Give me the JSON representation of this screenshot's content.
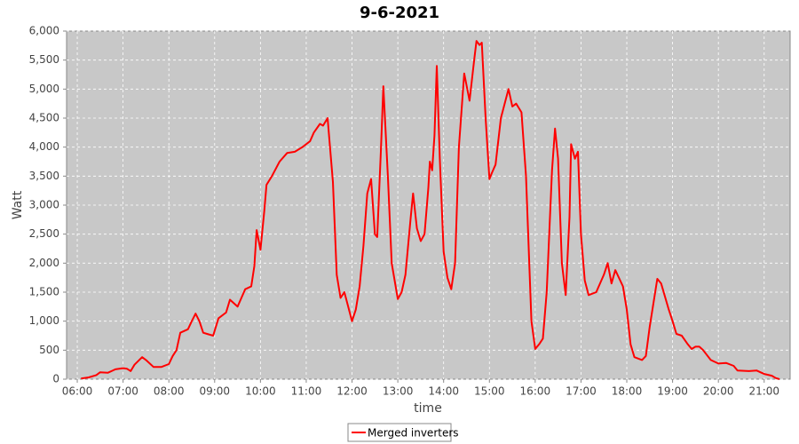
{
  "chart_data": {
    "type": "line",
    "title": "9-6-2021",
    "x_label": "time",
    "y_label": "Watt",
    "x": [
      "06:05",
      "06:15",
      "06:25",
      "06:30",
      "06:40",
      "06:50",
      "07:00",
      "07:05",
      "07:10",
      "07:15",
      "07:25",
      "07:30",
      "07:40",
      "07:50",
      "08:00",
      "08:05",
      "08:10",
      "08:15",
      "08:25",
      "08:30",
      "08:35",
      "08:40",
      "08:45",
      "08:50",
      "08:58",
      "09:05",
      "09:15",
      "09:20",
      "09:30",
      "09:35",
      "09:40",
      "09:48",
      "09:52",
      "09:55",
      "10:00",
      "10:05",
      "10:08",
      "10:15",
      "10:25",
      "10:35",
      "10:45",
      "10:55",
      "11:05",
      "11:10",
      "11:18",
      "11:22",
      "11:28",
      "11:35",
      "11:40",
      "11:45",
      "11:50",
      "11:55",
      "12:00",
      "12:05",
      "12:10",
      "12:15",
      "12:20",
      "12:25",
      "12:30",
      "12:33",
      "12:38",
      "12:41",
      "12:47",
      "12:52",
      "13:00",
      "13:05",
      "13:10",
      "13:17",
      "13:20",
      "13:25",
      "13:30",
      "13:35",
      "13:40",
      "13:42",
      "13:45",
      "13:48",
      "13:51",
      "13:55",
      "14:00",
      "14:05",
      "14:10",
      "14:15",
      "14:20",
      "14:27",
      "14:34",
      "14:40",
      "14:43",
      "14:47",
      "14:50",
      "14:55",
      "15:00",
      "15:03",
      "15:08",
      "15:15",
      "15:25",
      "15:30",
      "15:35",
      "15:42",
      "15:48",
      "15:55",
      "16:00",
      "16:05",
      "16:10",
      "16:15",
      "16:22",
      "16:26",
      "16:30",
      "16:35",
      "16:40",
      "16:45",
      "16:47",
      "16:52",
      "16:56",
      "17:00",
      "17:05",
      "17:10",
      "17:20",
      "17:30",
      "17:35",
      "17:40",
      "17:45",
      "17:55",
      "18:00",
      "18:05",
      "18:10",
      "18:20",
      "18:25",
      "18:30",
      "18:40",
      "18:45",
      "18:55",
      "19:00",
      "19:05",
      "19:12",
      "19:20",
      "19:25",
      "19:30",
      "19:35",
      "19:40",
      "19:50",
      "20:00",
      "20:10",
      "20:20",
      "20:25",
      "20:40",
      "20:50",
      "20:55",
      "21:00",
      "21:10",
      "21:15",
      "21:20"
    ],
    "series": [
      {
        "name": "Merged inverters",
        "color": "#ff0000",
        "values": [
          10,
          30,
          70,
          120,
          110,
          170,
          190,
          180,
          140,
          250,
          380,
          330,
          210,
          210,
          260,
          400,
          500,
          800,
          860,
          1000,
          1130,
          1000,
          800,
          780,
          750,
          1050,
          1150,
          1370,
          1250,
          1400,
          1550,
          1600,
          1950,
          2570,
          2230,
          2900,
          3350,
          3500,
          3750,
          3900,
          3920,
          4000,
          4100,
          4250,
          4400,
          4370,
          4500,
          3400,
          1800,
          1400,
          1500,
          1250,
          1000,
          1200,
          1600,
          2300,
          3200,
          3450,
          2500,
          2450,
          4000,
          5050,
          3500,
          2000,
          1380,
          1500,
          1800,
          2800,
          3200,
          2600,
          2380,
          2500,
          3300,
          3750,
          3600,
          4200,
          5400,
          3800,
          2200,
          1750,
          1550,
          2000,
          4000,
          5270,
          4800,
          5500,
          5830,
          5760,
          5800,
          4500,
          3450,
          3550,
          3700,
          4500,
          5000,
          4700,
          4750,
          4600,
          3500,
          1000,
          520,
          600,
          700,
          1500,
          3600,
          4320,
          3800,
          2000,
          1450,
          2800,
          4050,
          3800,
          3920,
          2500,
          1700,
          1450,
          1500,
          1800,
          2000,
          1650,
          1880,
          1600,
          1200,
          600,
          380,
          330,
          400,
          900,
          1730,
          1650,
          1200,
          1000,
          780,
          750,
          600,
          520,
          560,
          560,
          500,
          330,
          270,
          280,
          230,
          150,
          140,
          150,
          120,
          90,
          60,
          20,
          0
        ]
      }
    ],
    "xlim": [
      "05:46",
      "21:34"
    ],
    "xticks": [
      "06:00",
      "07:00",
      "08:00",
      "09:00",
      "10:00",
      "11:00",
      "12:00",
      "13:00",
      "14:00",
      "15:00",
      "16:00",
      "17:00",
      "18:00",
      "19:00",
      "20:00",
      "21:00"
    ],
    "ylim": [
      0,
      6000
    ],
    "yticks": [
      0,
      500,
      {
        "value": 1000,
        "label": "1,000"
      },
      {
        "value": 1500,
        "label": "1,500"
      },
      {
        "value": 2000,
        "label": "2,000"
      },
      {
        "value": 2500,
        "label": "2,500"
      },
      {
        "value": 3000,
        "label": "3,000"
      },
      {
        "value": 3500,
        "label": "3,500"
      },
      {
        "value": 4000,
        "label": "4,000"
      },
      {
        "value": 4500,
        "label": "4,500"
      },
      {
        "value": 5000,
        "label": "5,000"
      },
      {
        "value": 5500,
        "label": "5,500"
      },
      {
        "value": 6000,
        "label": "6,000"
      }
    ],
    "grid": true,
    "legend": "bottom"
  }
}
